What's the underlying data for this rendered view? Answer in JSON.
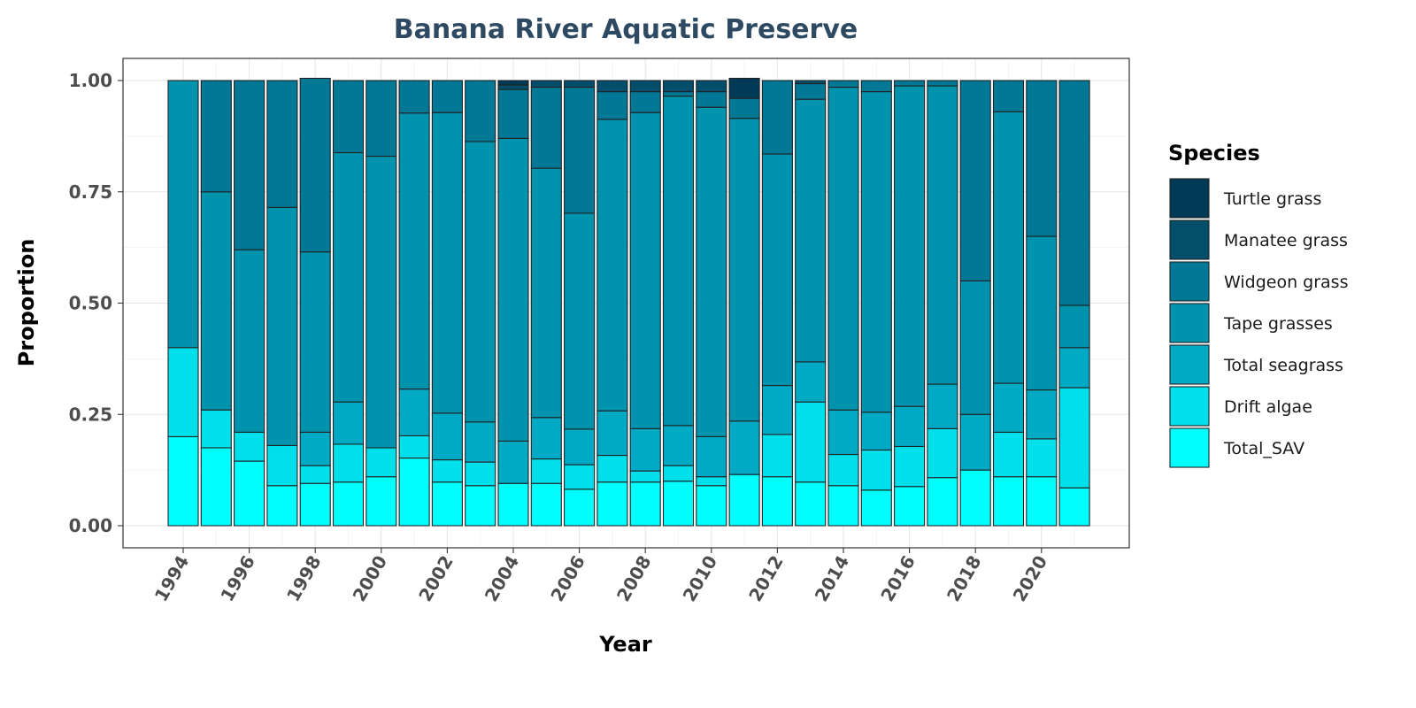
{
  "chart_data": {
    "type": "bar",
    "stacked": true,
    "title": "Banana River Aquatic Preserve",
    "xlabel": "Year",
    "ylabel": "Proportion",
    "ylim": [
      0,
      1
    ],
    "y_ticks": [
      "0.00",
      "0.25",
      "0.50",
      "0.75",
      "1.00"
    ],
    "x_tick_labels": [
      "1994",
      "1996",
      "1998",
      "2000",
      "2002",
      "2004",
      "2006",
      "2008",
      "2010",
      "2012",
      "2014",
      "2016",
      "2018",
      "2020"
    ],
    "grid": true,
    "legend_title": "Species",
    "legend_position": "right",
    "categories": [
      "1994",
      "1995",
      "1996",
      "1997",
      "1998",
      "1999",
      "2000",
      "2001",
      "2002",
      "2003",
      "2004",
      "2005",
      "2006",
      "2007",
      "2008",
      "2009",
      "2010",
      "2011",
      "2012",
      "2013",
      "2014",
      "2015",
      "2016",
      "2017",
      "2018",
      "2019",
      "2020",
      "2021"
    ],
    "series": [
      {
        "name": "Turtle grass",
        "color": "#003a57",
        "values": [
          0,
          0,
          0,
          0,
          0,
          0,
          0,
          0,
          0,
          0,
          0.01,
          0,
          0,
          0,
          0,
          0,
          0,
          0.045,
          0,
          0,
          0,
          0,
          0,
          0,
          0,
          0,
          0,
          0
        ]
      },
      {
        "name": "Manatee grass",
        "color": "#034e6a",
        "values": [
          0,
          0,
          0,
          0,
          0,
          0,
          0,
          0,
          0,
          0,
          0.01,
          0.015,
          0.015,
          0.025,
          0.025,
          0.025,
          0.025,
          0,
          0,
          0.007,
          0,
          0,
          0,
          0,
          0,
          0,
          0,
          0
        ]
      },
      {
        "name": "Widgeon grass",
        "color": "#017896",
        "values": [
          0,
          0.25,
          0.38,
          0.285,
          0.39,
          0.162,
          0.17,
          0.073,
          0.072,
          0.137,
          0.11,
          0.182,
          0.283,
          0.062,
          0.047,
          0.01,
          0.035,
          0.045,
          0.165,
          0.035,
          0.015,
          0.025,
          0.012,
          0.012,
          0.45,
          0.07,
          0.35,
          0.505
        ]
      },
      {
        "name": "Tape grasses",
        "color": "#0093ae",
        "values": [
          0.6,
          0.49,
          0.41,
          0.535,
          0.405,
          0.56,
          0.655,
          0.62,
          0.675,
          0.63,
          0.68,
          0.56,
          0.485,
          0.655,
          0.71,
          0.74,
          0.74,
          0.68,
          0.52,
          0.59,
          0.725,
          0.72,
          0.72,
          0.67,
          0.3,
          0.61,
          0.345,
          0.095
        ]
      },
      {
        "name": "Total seagrass",
        "color": "#00a9c4",
        "values": [
          0,
          0,
          0,
          0,
          0.075,
          0.095,
          0,
          0.105,
          0.105,
          0.09,
          0.095,
          0.093,
          0.08,
          0.1,
          0.095,
          0.09,
          0.09,
          0.12,
          0.11,
          0.09,
          0.1,
          0.085,
          0.09,
          0.1,
          0.125,
          0.11,
          0.11,
          0.09
        ]
      },
      {
        "name": "Drift algae",
        "color": "#00e0ea",
        "values": [
          0.2,
          0.085,
          0.065,
          0.09,
          0.04,
          0.085,
          0.065,
          0.05,
          0.05,
          0.053,
          0,
          0.055,
          0.055,
          0.06,
          0.025,
          0.035,
          0.02,
          0,
          0.095,
          0.18,
          0.07,
          0.09,
          0.09,
          0.11,
          0,
          0.1,
          0.085,
          0.225
        ]
      },
      {
        "name": "Total_SAV",
        "color": "#00ffff",
        "values": [
          0.2,
          0.175,
          0.145,
          0.09,
          0.095,
          0.098,
          0.11,
          0.152,
          0.098,
          0.09,
          0.095,
          0.095,
          0.082,
          0.098,
          0.098,
          0.1,
          0.09,
          0.115,
          0.11,
          0.098,
          0.09,
          0.08,
          0.088,
          0.108,
          0.125,
          0.11,
          0.11,
          0.085
        ]
      }
    ]
  }
}
